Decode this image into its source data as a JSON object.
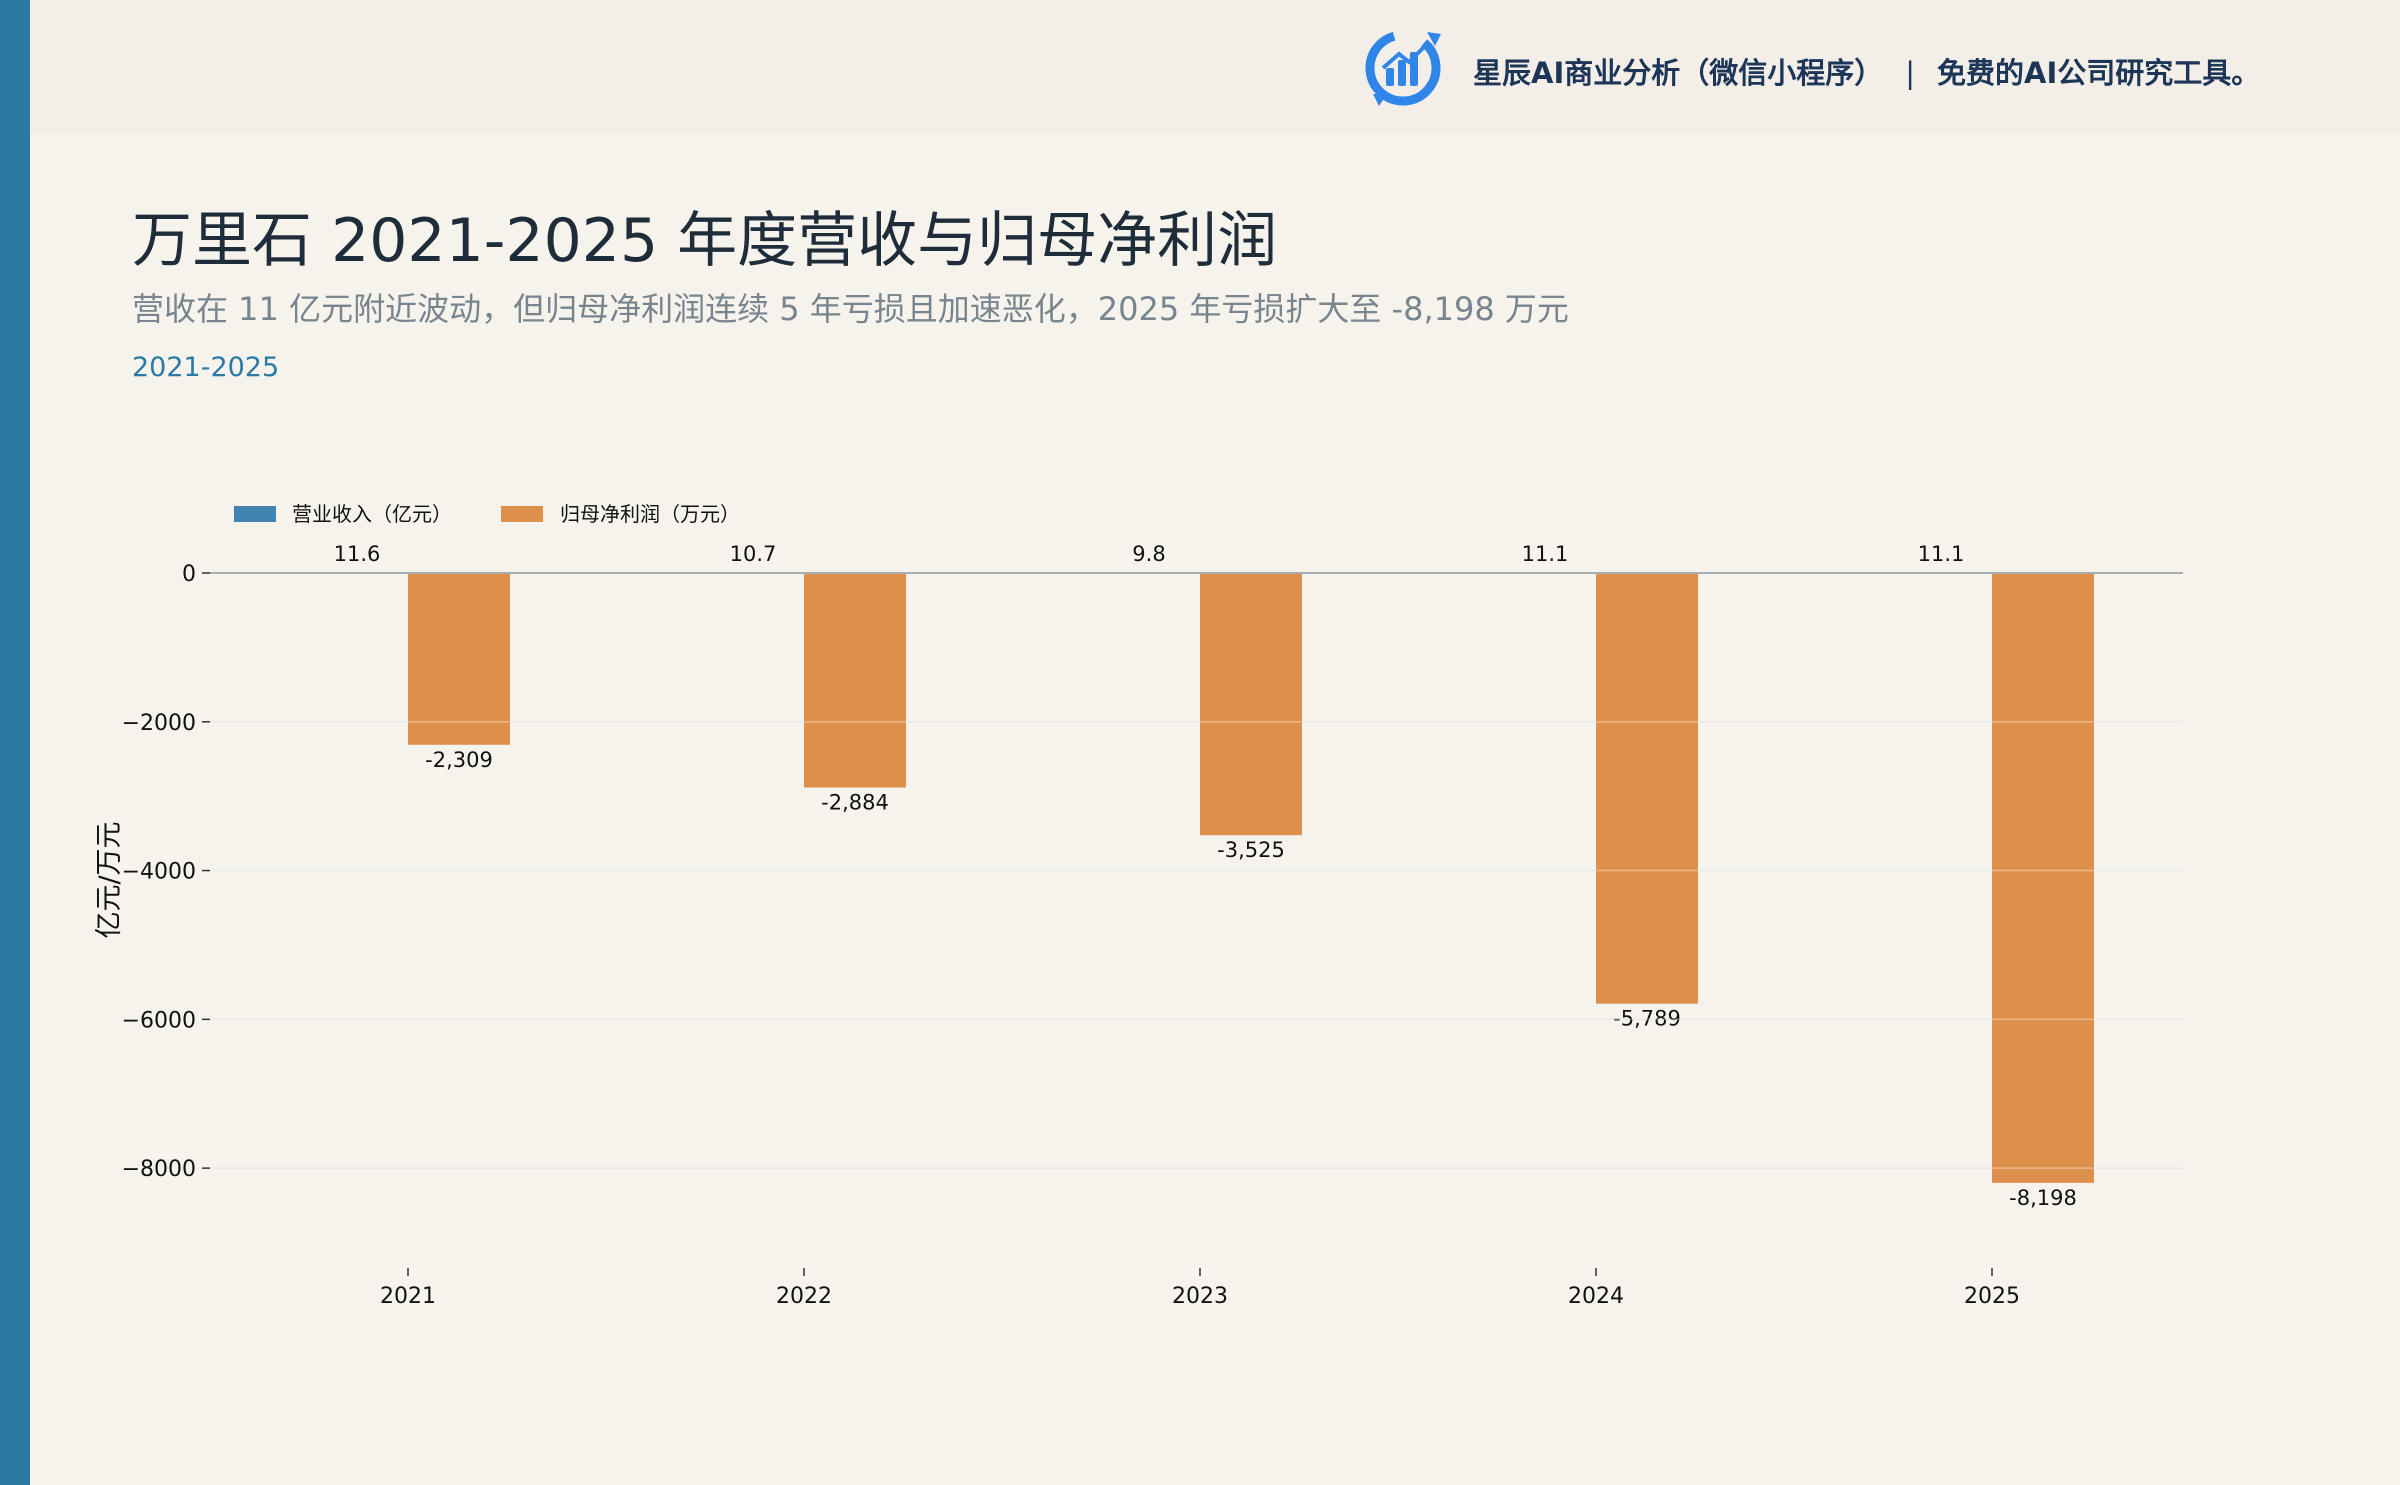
{
  "header": {
    "brand_name": "星辰AI商业分析（微信小程序）",
    "separator": "|",
    "brand_tagline": "免费的AI公司研究工具。",
    "logo_icon": "bar-chart-logo-icon"
  },
  "title": "万里石 2021-2025 年度营收与归母净利润",
  "subtitle": "营收在 11 亿元附近波动，但归母净利润连续 5 年亏损且加速恶化，2025 年亏损扩大至 -8,198 万元",
  "period": "2021-2025",
  "colors": {
    "accent": "#2a7aa5",
    "revenue": "#4183b3",
    "profit": "#dd904b",
    "background": "#f6f3ed"
  },
  "chart_data": {
    "type": "bar",
    "categories": [
      "2021",
      "2022",
      "2023",
      "2024",
      "2025"
    ],
    "series": [
      {
        "name": "营业收入（亿元）",
        "values": [
          11.6,
          10.7,
          9.8,
          11.1,
          11.1
        ],
        "labels": [
          "11.6",
          "10.7",
          "9.8",
          "11.1",
          "11.1"
        ]
      },
      {
        "name": "归母净利润（万元）",
        "values": [
          -2309,
          -2884,
          -3525,
          -5789,
          -8198
        ],
        "labels": [
          "-2,309",
          "-2,884",
          "-3,525",
          "-5,789",
          "-8,198"
        ]
      }
    ],
    "ylabel": "亿元/万元",
    "ylim": [
      -8200,
      0
    ],
    "yticks": [
      0,
      -2000,
      -4000,
      -6000,
      -8000
    ],
    "ytick_labels": [
      "0",
      "−2000",
      "−4000",
      "−6000",
      "−8000"
    ],
    "grid": true,
    "legend_position": "top-left"
  }
}
